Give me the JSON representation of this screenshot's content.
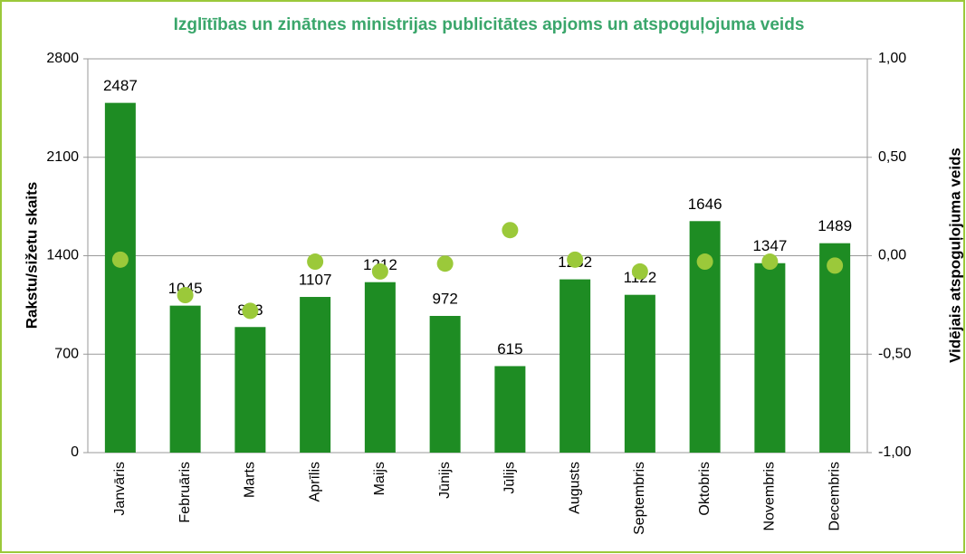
{
  "chart_data": {
    "type": "bar",
    "title": "Izglītības un zinātnes ministrijas publicitātes apjoms un atspoguļojuma veids",
    "y_label": "Rakstu/sižetu skaits",
    "y2_label": "Vidējais atspoguļojuma veids",
    "categories": [
      "Janvāris",
      "Februāris",
      "Marts",
      "Aprīlis",
      "Maijs",
      "Jūnijs",
      "Jūlijs",
      "Augusts",
      "Septembris",
      "Oktobris",
      "Novembris",
      "Decembris"
    ],
    "series": [
      {
        "type": "bar",
        "color": "#1e8c23",
        "values": [
          2487,
          1045,
          893,
          1107,
          1212,
          972,
          615,
          1232,
          1122,
          1646,
          1347,
          1489
        ]
      },
      {
        "type": "scatter",
        "axis": "y2",
        "color": "#9bc93a",
        "values": [
          -0.02,
          -0.2,
          -0.28,
          -0.03,
          -0.08,
          -0.04,
          0.13,
          -0.02,
          -0.08,
          -0.03,
          -0.03,
          -0.05
        ]
      }
    ],
    "ylim": [
      0,
      2800
    ],
    "yticks": [
      0,
      700,
      1400,
      2100,
      2800
    ],
    "y2lim": [
      -1,
      1
    ],
    "y2ticks": [
      {
        "value": -1,
        "label": "-1,00"
      },
      {
        "value": -0.5,
        "label": "-0,50"
      },
      {
        "value": 0,
        "label": "0,00"
      },
      {
        "value": 0.5,
        "label": "0,50"
      },
      {
        "value": 1,
        "label": "1,00"
      }
    ],
    "grid": true
  }
}
